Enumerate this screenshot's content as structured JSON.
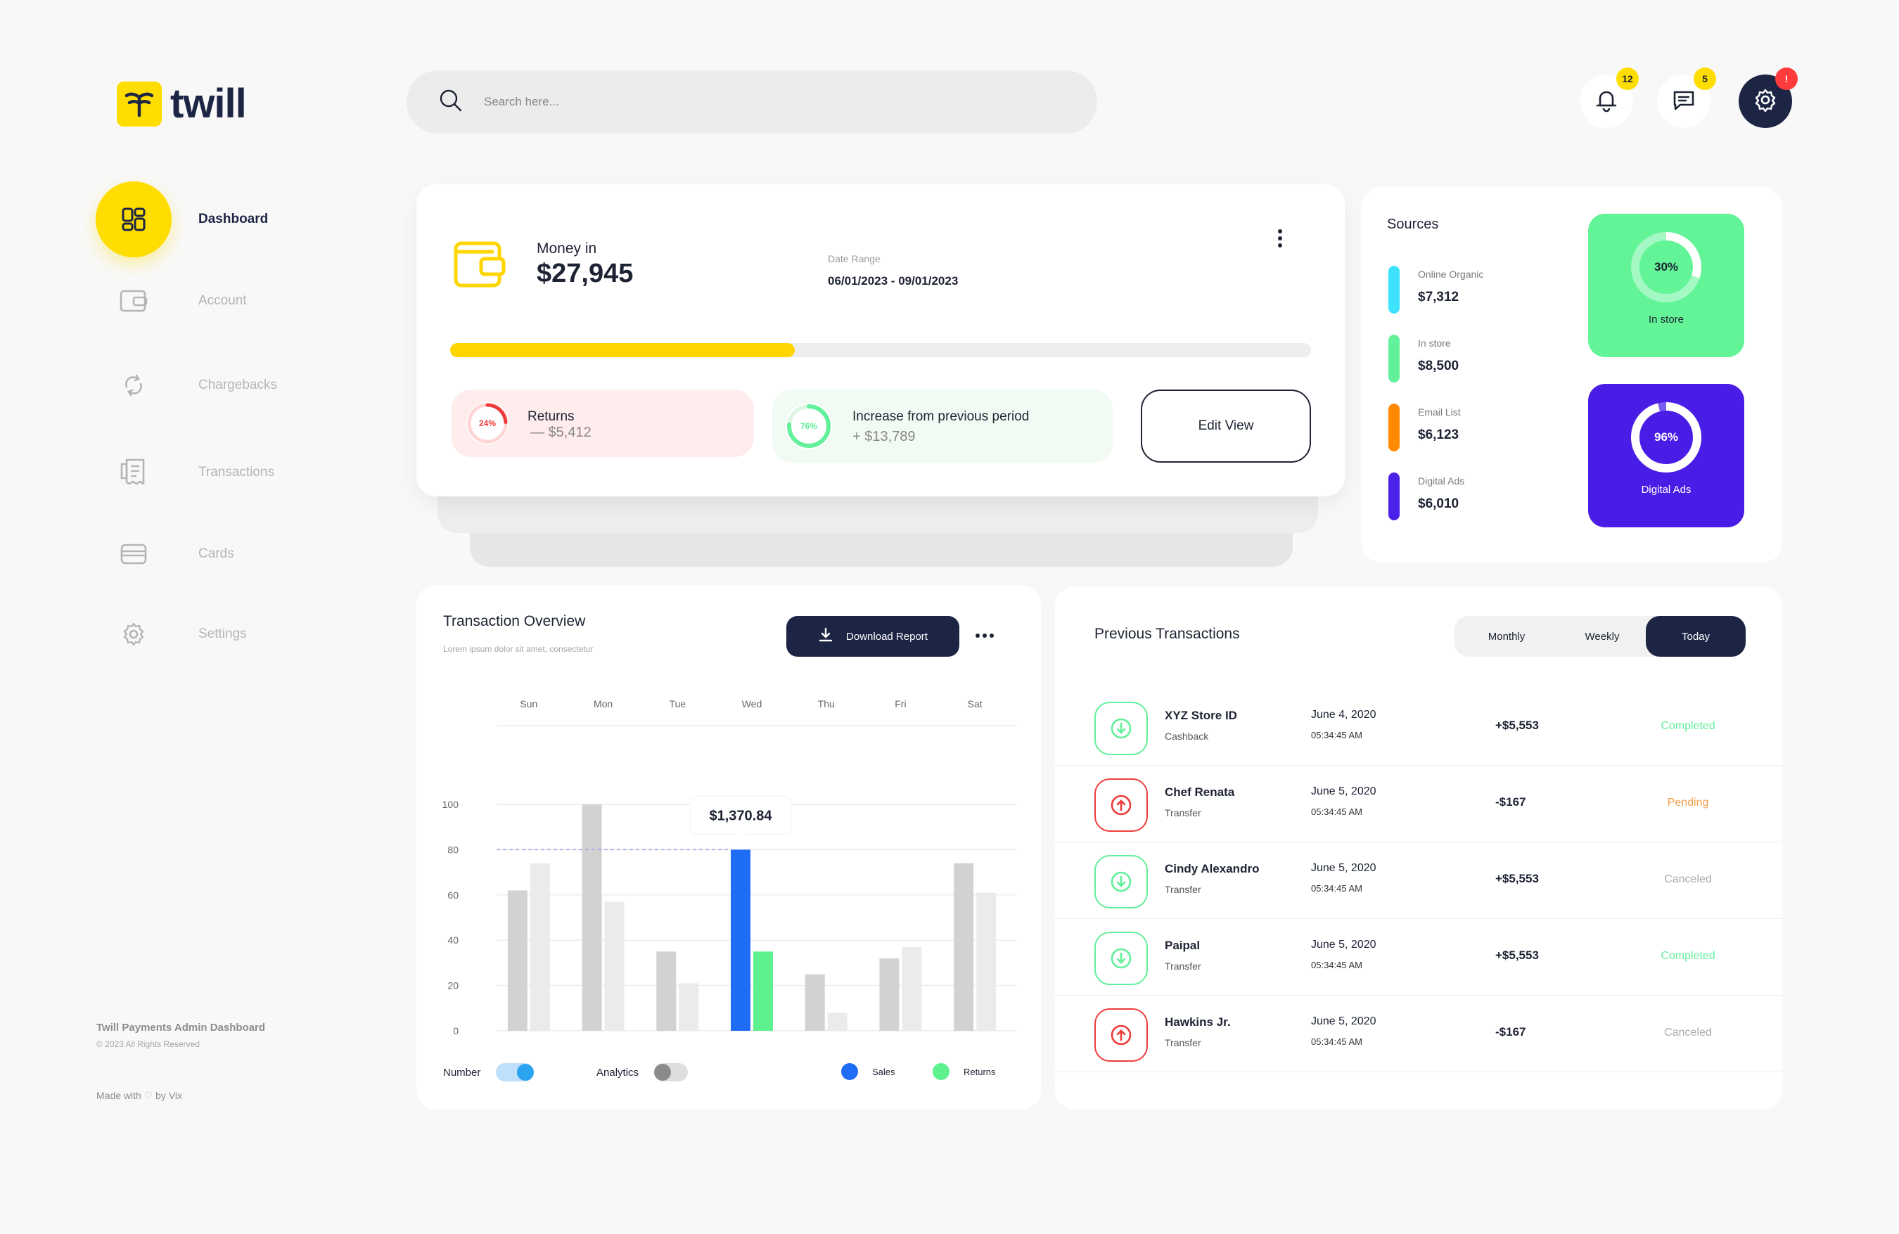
{
  "brand": {
    "name": "twill",
    "accent": "#ffdd00",
    "navy": "#1d2544"
  },
  "search": {
    "placeholder": "Search here..."
  },
  "header": {
    "notifications": {
      "icon": "bell-icon",
      "count": "12"
    },
    "messages": {
      "icon": "chat-icon",
      "count": "5"
    },
    "settings": {
      "icon": "gear-icon",
      "badge": "!"
    }
  },
  "sidebar": {
    "items": [
      {
        "label": "Dashboard",
        "icon": "dashboard-icon",
        "active": true
      },
      {
        "label": "Account",
        "icon": "wallet-icon"
      },
      {
        "label": "Chargebacks",
        "icon": "refresh-icon"
      },
      {
        "label": "Transactions",
        "icon": "receipt-icon"
      },
      {
        "label": "Cards",
        "icon": "card-icon"
      },
      {
        "label": "Settings",
        "icon": "gear-icon"
      }
    ],
    "footer": {
      "title": "Twill Payments Admin Dashboard",
      "copyright": "© 2023 All Rights Reserved",
      "made_with_prefix": "Made with",
      "made_with_suffix": "by Vix"
    }
  },
  "money": {
    "label": "Money in",
    "value": "$27,945",
    "date_range_label": "Date Range",
    "date_range": "06/01/2023 - 09/01/2023",
    "progress": 0.4,
    "returns": {
      "percent": "24%",
      "percent_value": 24,
      "title": "Returns",
      "amount": "— $5,412"
    },
    "increase": {
      "percent": "76%",
      "percent_value": 76,
      "title": "Increase from previous period",
      "amount": "+ $13,789"
    },
    "edit_button": "Edit View"
  },
  "sources": {
    "title": "Sources",
    "items": [
      {
        "label": "Online Organic",
        "value": "$7,312",
        "color": "#3ee2ff"
      },
      {
        "label": "In store",
        "value": "$8,500",
        "color": "#62f09a"
      },
      {
        "label": "Email List",
        "value": "$6,123",
        "color": "#ff8a00"
      },
      {
        "label": "Digital Ads",
        "value": "$6,010",
        "color": "#4a21e8"
      }
    ],
    "tiles": [
      {
        "percent": "30%",
        "percent_value": 30,
        "label": "In store",
        "color": "#62f497"
      },
      {
        "percent": "96%",
        "percent_value": 96,
        "label": "Digital Ads",
        "color": "#4a1de6"
      }
    ]
  },
  "overview": {
    "title": "Transaction Overview",
    "subtitle": "Lorem ipsum dolor sit amet, consectetur",
    "download_button": "Download Report",
    "toggles": [
      {
        "label": "Number",
        "on": true
      },
      {
        "label": "Analytics",
        "on": false
      }
    ],
    "legend": [
      {
        "label": "Sales",
        "color": "#1f6cf5"
      },
      {
        "label": "Returns",
        "color": "#5ef28e"
      }
    ]
  },
  "chart_data": {
    "type": "bar",
    "categories": [
      "Sun",
      "Mon",
      "Tue",
      "Wed",
      "Thu",
      "Fri",
      "Sat"
    ],
    "series": [
      {
        "name": "Sales",
        "values": [
          62,
          100,
          35,
          80,
          25,
          32,
          74
        ]
      },
      {
        "name": "Returns",
        "values": [
          74,
          57,
          21,
          35,
          8,
          37,
          61
        ]
      }
    ],
    "ylim": [
      0,
      100
    ],
    "yticks": [
      0,
      20,
      40,
      60,
      80,
      100
    ],
    "highlight": {
      "category": "Wed",
      "tooltip": "$1,370.84",
      "value": 80
    },
    "grid": true
  },
  "previous": {
    "title": "Previous Transactions",
    "tabs": [
      {
        "label": "Monthly"
      },
      {
        "label": "Weekly"
      },
      {
        "label": "Today",
        "active": true
      }
    ],
    "rows": [
      {
        "direction": "in",
        "name": "XYZ Store ID",
        "type": "Cashback",
        "date": "June 4, 2020",
        "time": "05:34:45 AM",
        "amount": "+$5,553",
        "status": "Completed",
        "status_color": "#62f09a"
      },
      {
        "direction": "out",
        "name": "Chef Renata",
        "type": "Transfer",
        "date": "June 5, 2020",
        "time": "05:34:45 AM",
        "amount": "-$167",
        "status": "Pending",
        "status_color": "#f5a04b"
      },
      {
        "direction": "in",
        "name": "Cindy Alexandro",
        "type": "Transfer",
        "date": "June 5, 2020",
        "time": "05:34:45 AM",
        "amount": "+$5,553",
        "status": "Canceled",
        "status_color": "#aaaaaa"
      },
      {
        "direction": "in",
        "name": "Paipal",
        "type": "Transfer",
        "date": "June 5, 2020",
        "time": "05:34:45 AM",
        "amount": "+$5,553",
        "status": "Completed",
        "status_color": "#62f09a"
      },
      {
        "direction": "out",
        "name": "Hawkins Jr.",
        "type": "Transfer",
        "date": "June 5, 2020",
        "time": "05:34:45 AM",
        "amount": "-$167",
        "status": "Canceled",
        "status_color": "#aaaaaa"
      }
    ]
  }
}
